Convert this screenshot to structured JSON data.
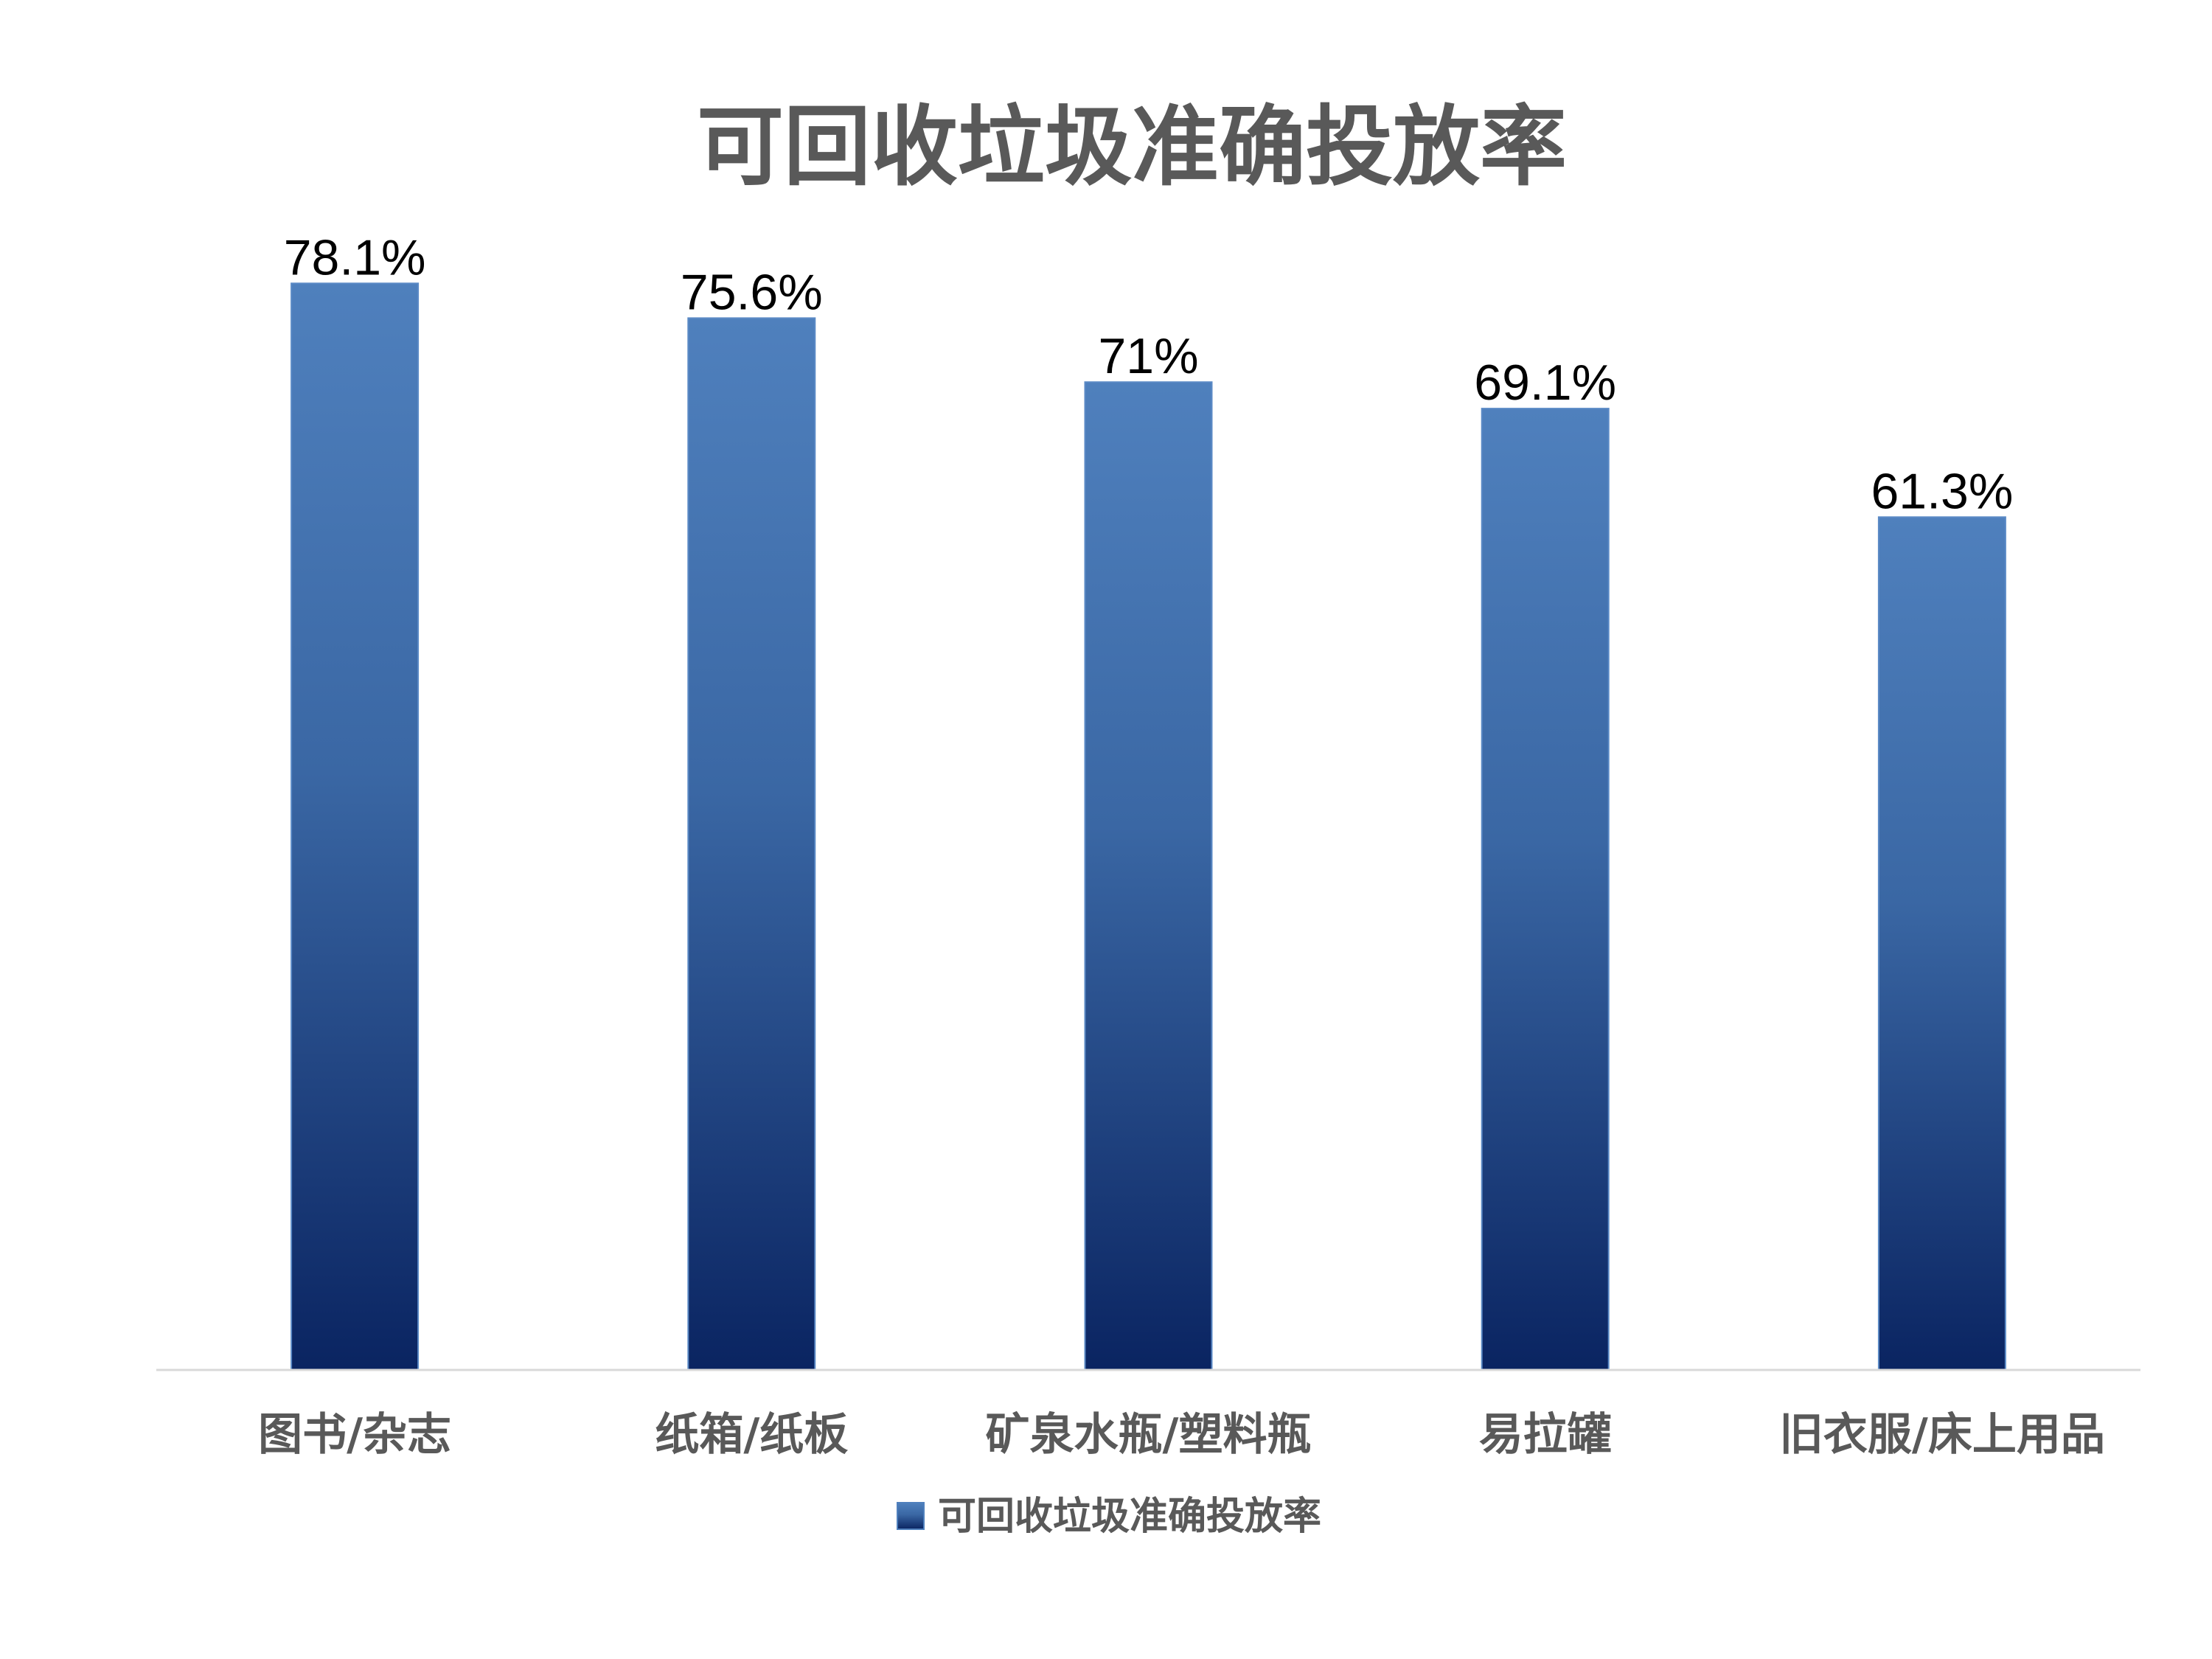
{
  "chart_data": {
    "type": "bar",
    "title": "可回收垃圾准确投放率",
    "categories": [
      "图书/杂志",
      "纸箱/纸板",
      "矿泉水瓶/塑料瓶",
      "易拉罐",
      "旧衣服/床上用品"
    ],
    "series": [
      {
        "name": "可回收垃圾准确投放率",
        "values": [
          78.1,
          75.6,
          71,
          69.1,
          61.3
        ]
      }
    ],
    "data_labels": [
      "78.1%",
      "75.6%",
      "71%",
      "69.1%",
      "61.3%"
    ],
    "value_unit": "%",
    "ylim": [
      0,
      80
    ],
    "grid": false,
    "legend_position": "bottom",
    "colors": {
      "bar_top": "#4f80bd",
      "bar_bottom": "#0a2461",
      "axis": "#d9d9d9",
      "text": "#595959"
    }
  }
}
